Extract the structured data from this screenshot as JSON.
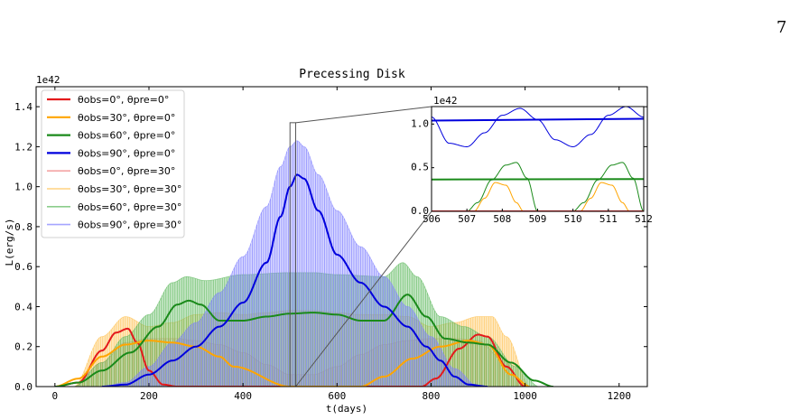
{
  "page_number": "7",
  "chart_data": {
    "type": "line",
    "title": "Precessing Disk",
    "xlabel": "t(days)",
    "ylabel": "L(erg/s)",
    "y_scale_label": "1e42",
    "xlim": [
      -40,
      1260
    ],
    "ylim": [
      0,
      1.5
    ],
    "xticks": [
      0,
      200,
      400,
      600,
      800,
      1000,
      1200
    ],
    "yticks": [
      0.0,
      0.2,
      0.4,
      0.6,
      0.8,
      1.0,
      1.2,
      1.4
    ],
    "xtick_labels": [
      "0",
      "200",
      "400",
      "600",
      "800",
      "1000",
      "1200"
    ],
    "ytick_labels": [
      "0.0",
      "0.2",
      "0.4",
      "0.6",
      "0.8",
      "1.0",
      "1.2",
      "1.4"
    ],
    "legend_position": "upper-left",
    "zoom_box": {
      "x": [
        500,
        512
      ],
      "y": [
        0,
        1.32
      ]
    },
    "series": [
      {
        "name": "θobs=0°, θpre=0°",
        "color": "#e41a1c",
        "style": "thick",
        "x": [
          0,
          50,
          100,
          130,
          155,
          175,
          200,
          230,
          260,
          600,
          780,
          810,
          860,
          900,
          920,
          960,
          1000
        ],
        "y": [
          0,
          0.02,
          0.18,
          0.27,
          0.29,
          0.22,
          0.08,
          0.01,
          0,
          0,
          0,
          0.04,
          0.19,
          0.26,
          0.25,
          0.1,
          0
        ]
      },
      {
        "name": "θobs=30°, θpre=0°",
        "color": "#ffa500",
        "style": "thick",
        "x": [
          0,
          50,
          100,
          150,
          200,
          250,
          300,
          350,
          380,
          500,
          580,
          650,
          700,
          760,
          820,
          880,
          920,
          970,
          1010
        ],
        "y": [
          0,
          0.04,
          0.15,
          0.21,
          0.23,
          0.22,
          0.2,
          0.15,
          0.1,
          0,
          0,
          0,
          0.05,
          0.14,
          0.2,
          0.23,
          0.21,
          0.06,
          0
        ]
      },
      {
        "name": "θobs=60°, θpre=0°",
        "color": "#1a8a1a",
        "style": "thick",
        "x": [
          0,
          50,
          100,
          160,
          220,
          260,
          285,
          310,
          350,
          400,
          450,
          500,
          550,
          600,
          650,
          700,
          750,
          790,
          830,
          880,
          920,
          970,
          1020,
          1060
        ],
        "y": [
          0,
          0.02,
          0.08,
          0.17,
          0.3,
          0.41,
          0.43,
          0.41,
          0.33,
          0.33,
          0.35,
          0.365,
          0.37,
          0.36,
          0.33,
          0.33,
          0.46,
          0.35,
          0.24,
          0.22,
          0.21,
          0.12,
          0.03,
          0
        ]
      },
      {
        "name": "θobs=90°, θpre=0°",
        "color": "#0000dd",
        "style": "thick",
        "x": [
          100,
          150,
          200,
          250,
          300,
          350,
          400,
          450,
          480,
          500,
          515,
          530,
          560,
          600,
          650,
          700,
          750,
          790,
          820,
          850,
          880,
          920
        ],
        "y": [
          0,
          0.01,
          0.06,
          0.13,
          0.2,
          0.3,
          0.42,
          0.62,
          0.85,
          1.0,
          1.06,
          1.04,
          0.88,
          0.66,
          0.52,
          0.4,
          0.3,
          0.2,
          0.13,
          0.05,
          0.01,
          0
        ]
      },
      {
        "name": "θobs=0°, θpre=30°",
        "color": "#f08080",
        "style": "band",
        "x": [
          40,
          100,
          150,
          200,
          260,
          300,
          350,
          400,
          450,
          500,
          550,
          600,
          650,
          700,
          750,
          800,
          850,
          900,
          950,
          1000
        ],
        "y": [
          0,
          0.12,
          0.22,
          0.24,
          0.24,
          0.23,
          0.21,
          0.17,
          0.11,
          0.06,
          0.06,
          0.1,
          0.16,
          0.21,
          0.23,
          0.24,
          0.24,
          0.23,
          0.14,
          0
        ]
      },
      {
        "name": "θobs=30°, θpre=30°",
        "color": "#ffc04d",
        "style": "band",
        "x": [
          40,
          100,
          150,
          200,
          250,
          300,
          350,
          400,
          450,
          500,
          550,
          600,
          650,
          700,
          750,
          800,
          850,
          900,
          930,
          960,
          1010
        ],
        "y": [
          0,
          0.25,
          0.35,
          0.3,
          0.32,
          0.36,
          0.37,
          0.36,
          0.37,
          0.38,
          0.38,
          0.37,
          0.36,
          0.36,
          0.35,
          0.3,
          0.32,
          0.35,
          0.35,
          0.25,
          0
        ]
      },
      {
        "name": "θobs=60°, θpre=30°",
        "color": "#5cb85c",
        "style": "band",
        "x": [
          40,
          100,
          150,
          200,
          250,
          280,
          320,
          400,
          500,
          550,
          600,
          700,
          740,
          770,
          820,
          870,
          920,
          980,
          1030
        ],
        "y": [
          0,
          0.12,
          0.25,
          0.36,
          0.52,
          0.55,
          0.53,
          0.56,
          0.57,
          0.57,
          0.56,
          0.55,
          0.62,
          0.55,
          0.35,
          0.3,
          0.25,
          0.1,
          0
        ]
      },
      {
        "name": "θobs=90°, θpre=30°",
        "color": "#8080ff",
        "style": "band",
        "x": [
          100,
          150,
          200,
          250,
          300,
          350,
          400,
          450,
          480,
          500,
          515,
          530,
          560,
          600,
          650,
          700,
          750,
          800,
          850,
          900
        ],
        "y": [
          0,
          0.02,
          0.1,
          0.22,
          0.32,
          0.47,
          0.65,
          0.9,
          1.1,
          1.2,
          1.23,
          1.2,
          1.06,
          0.88,
          0.7,
          0.55,
          0.4,
          0.25,
          0.09,
          0
        ]
      }
    ],
    "inset": {
      "xlim": [
        506,
        512
      ],
      "ylim": [
        0,
        1.2
      ],
      "xticks": [
        506,
        507,
        508,
        509,
        510,
        511,
        512
      ],
      "yticks": [
        0.0,
        0.5,
        1.0
      ],
      "xtick_labels": [
        "506",
        "507",
        "508",
        "509",
        "510",
        "511",
        "512"
      ],
      "ytick_labels": [
        "0.0",
        "0.5",
        "1.0"
      ],
      "y_scale_label": "1e42",
      "flat": [
        {
          "color": "#0000dd",
          "x": [
            506,
            512
          ],
          "y": [
            1.04,
            1.06
          ]
        },
        {
          "color": "#1a8a1a",
          "x": [
            506,
            512
          ],
          "y": [
            0.365,
            0.37
          ]
        },
        {
          "color": "#e41a1c",
          "x": [
            506,
            512
          ],
          "y": [
            0.0,
            0.0
          ]
        }
      ],
      "osc": [
        {
          "color": "#0000dd",
          "x": [
            506,
            506.5,
            507,
            507.5,
            508,
            508.5,
            509,
            509.5,
            510,
            510.5,
            511,
            511.5,
            512
          ],
          "y": [
            1.08,
            0.78,
            0.74,
            0.9,
            1.1,
            1.18,
            1.05,
            0.82,
            0.74,
            0.88,
            1.1,
            1.2,
            1.08
          ]
        },
        {
          "color": "#1a8a1a",
          "x": [
            506,
            507,
            507.3,
            507.7,
            508.1,
            508.4,
            508.7,
            509,
            510,
            510.3,
            510.7,
            511.1,
            511.4,
            511.7,
            512
          ],
          "y": [
            0,
            0,
            0.1,
            0.36,
            0.53,
            0.56,
            0.38,
            0,
            0,
            0.1,
            0.36,
            0.53,
            0.56,
            0.38,
            0
          ]
        },
        {
          "color": "#ffa500",
          "x": [
            506,
            507.2,
            507.5,
            507.8,
            508.1,
            508.4,
            508.6,
            510.2,
            510.5,
            510.8,
            511.1,
            511.4,
            511.6,
            512
          ],
          "y": [
            0,
            0,
            0.15,
            0.33,
            0.3,
            0.1,
            0,
            0,
            0.15,
            0.33,
            0.3,
            0.1,
            0,
            0
          ]
        }
      ]
    }
  }
}
